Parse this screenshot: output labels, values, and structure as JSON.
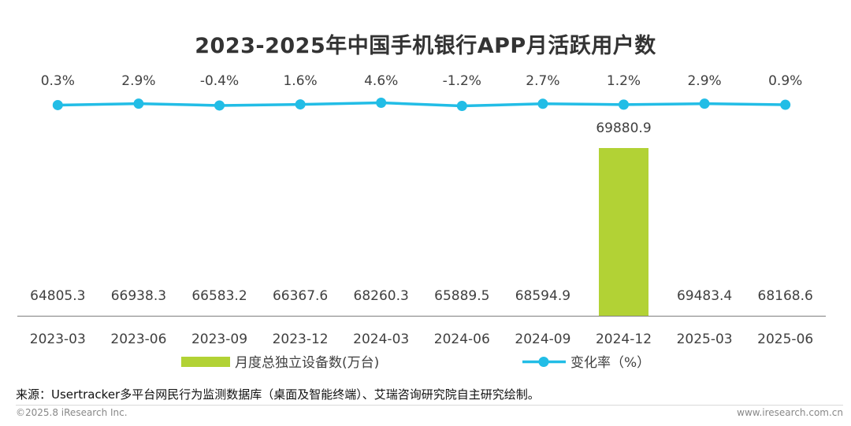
{
  "title": "2023-2025年中国手机银行APP月活跃用户数",
  "colors": {
    "bar": "#b2d235",
    "line": "#22bde6",
    "text": "#404040",
    "axis": "#7f7f7f"
  },
  "chart_data": {
    "type": "bar",
    "categories": [
      "2023-03",
      "2023-06",
      "2023-09",
      "2023-12",
      "2024-03",
      "2024-06",
      "2024-09",
      "2024-12",
      "2025-03",
      "2025-06"
    ],
    "series": [
      {
        "name": "月度总独立设备数(万台)",
        "type": "bar",
        "values": [
          64805.3,
          66938.3,
          66583.2,
          66367.6,
          68260.3,
          65889.5,
          68594.9,
          69880.9,
          69483.4,
          68168.6
        ],
        "labels": [
          "64805.3",
          "66938.3",
          "66583.2",
          "66367.6",
          "68260.3",
          "65889.5",
          "68594.9",
          "69880.9",
          "69483.4",
          "68168.6"
        ]
      },
      {
        "name": "变化率（%）",
        "type": "line",
        "values": [
          0.3,
          2.9,
          -0.4,
          1.6,
          4.6,
          -1.2,
          2.7,
          1.2,
          2.9,
          0.9
        ],
        "labels": [
          "0.3%",
          "2.9%",
          "-0.4%",
          "1.6%",
          "4.6%",
          "-1.2%",
          "2.7%",
          "1.2%",
          "2.9%",
          "0.9%"
        ]
      }
    ],
    "legend_position": "bottom-center",
    "grid": false
  },
  "footer": {
    "source": "来源：Usertracker多平台网民行为监测数据库（桌面及智能终端）、艾瑞咨询研究院自主研究绘制。",
    "copyright": "©2025.8 iResearch Inc.",
    "website": "www.iresearch.com.cn"
  }
}
